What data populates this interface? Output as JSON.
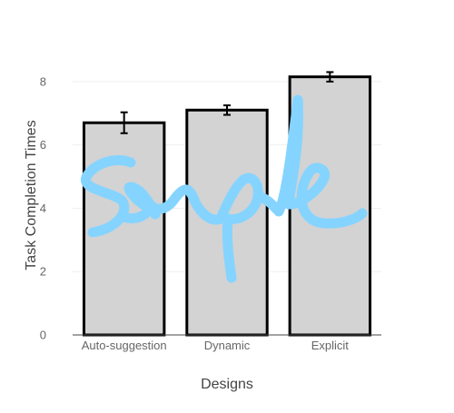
{
  "chart_data": {
    "type": "bar",
    "categories": [
      "Auto-suggestion",
      "Dynamic",
      "Explicit"
    ],
    "values": [
      6.7,
      7.1,
      8.15
    ],
    "error": [
      0.33,
      0.15,
      0.15
    ],
    "xlabel": "Designs",
    "ylabel": "Task Completion Times",
    "ylim": [
      0,
      9.0
    ],
    "yticks": [
      0,
      2,
      4,
      6,
      8
    ],
    "grid": true,
    "colors": {
      "bar_fill": "#d3d3d3",
      "bar_stroke": "#000000",
      "watermark": "#85d4ff"
    }
  }
}
